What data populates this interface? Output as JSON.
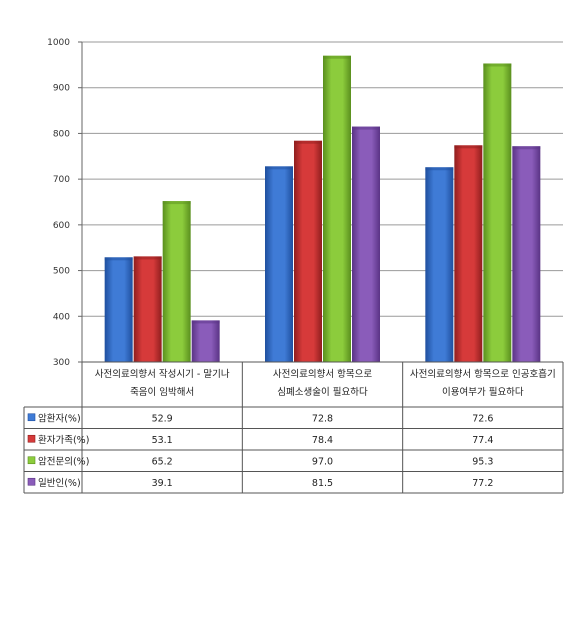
{
  "chart_data": {
    "type": "bar",
    "categories": [
      [
        "사전의료의향서 작성시기 - 말기나",
        "죽음이 임박해서"
      ],
      [
        "사전의료의향서 항목으로",
        "심폐소생술이 필요하다"
      ],
      [
        "사전의료의향서 항목으로 인공호흡기",
        "이용여부가 필요하다"
      ]
    ],
    "series": [
      {
        "name": "암환자(%)",
        "values": [
          52.9,
          72.8,
          72.6
        ],
        "color": "#3f7bd6",
        "dark": "#1f4f9e"
      },
      {
        "name": "환자가족(%)",
        "values": [
          53.1,
          78.4,
          77.4
        ],
        "color": "#d63a3a",
        "dark": "#8f1e1e"
      },
      {
        "name": "암전문의(%)",
        "values": [
          65.2,
          97.0,
          95.3
        ],
        "color": "#8ccc3c",
        "dark": "#5a8f1e"
      },
      {
        "name": "일반인(%)",
        "values": [
          39.1,
          81.5,
          77.2
        ],
        "color": "#8a5cba",
        "dark": "#5a3385"
      }
    ],
    "y_ticks": [
      "300",
      "400",
      "500",
      "600",
      "700",
      "800",
      "900",
      "1000"
    ],
    "ylim": [
      30,
      100
    ],
    "grid": true,
    "legend": "data-table"
  }
}
